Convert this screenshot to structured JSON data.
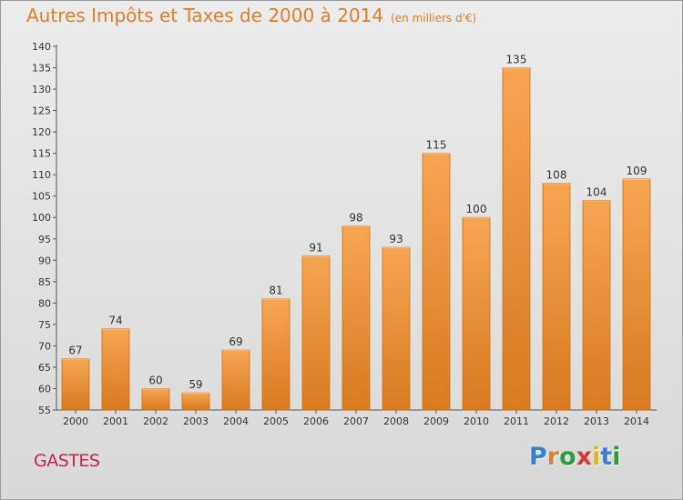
{
  "header": {
    "title": "Autres Impôts et Taxes de 2000 à 2014",
    "subtitle": "(en milliers d'€)"
  },
  "footer": {
    "commune": "GASTES",
    "logo_letters": [
      "P",
      "r",
      "o",
      "x",
      "i",
      "t",
      "i"
    ],
    "logo_colors": [
      "#3a7fd0",
      "#e0812b",
      "#2e9a3c",
      "#d63a2e",
      "#e0b32b",
      "#3a7fd0",
      "#2e9a3c"
    ]
  },
  "colors": {
    "bar_light": "#f7a551",
    "bar_dark": "#d97a1f",
    "text": "#333333",
    "accent": "#e07f2a"
  },
  "chart_data": {
    "type": "bar",
    "title": "Autres Impôts et Taxes de 2000 à 2014",
    "subtitle": "(en milliers d'€)",
    "xlabel": "",
    "ylabel": "",
    "categories": [
      "2000",
      "2001",
      "2002",
      "2003",
      "2004",
      "2005",
      "2006",
      "2007",
      "2008",
      "2009",
      "2010",
      "2011",
      "2012",
      "2013",
      "2014"
    ],
    "values": [
      67,
      74,
      60,
      59,
      69,
      81,
      91,
      98,
      93,
      115,
      100,
      135,
      108,
      104,
      109
    ],
    "ylim": [
      55,
      140
    ],
    "ytick_step": 5,
    "grid": false,
    "legend": "none"
  }
}
